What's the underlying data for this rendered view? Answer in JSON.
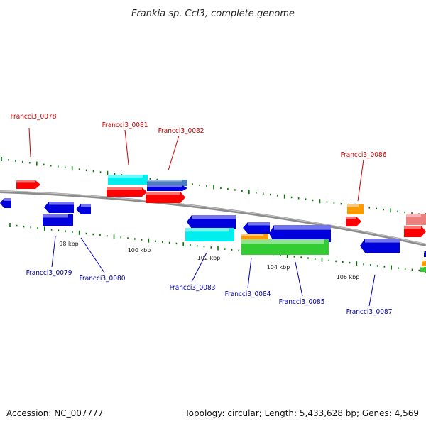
{
  "title": "Frankia sp. CcI3, complete genome",
  "footer": {
    "accession": "Accession: NC_007777",
    "summary": "Topology: circular; Length: 5,433,628 bp; Genes: 4,569"
  },
  "colors": {
    "forward_label": "#cc0000",
    "reverse_label": "#0000aa",
    "red": "#ff0000",
    "blue": "#0000dd",
    "cyan": "#00eeee",
    "orange": "#ff9900",
    "green": "#33cc33",
    "pink": "#ee7f7f",
    "steelblue": "#4d7fc0",
    "tick": "#007700",
    "backbone": "#888888"
  },
  "kbp_labels": [
    "98 kbp",
    "100 kbp",
    "102 kbp",
    "104 kbp",
    "106 kbp"
  ],
  "gene_labels": [
    {
      "text": "Francci3_0078",
      "strand": "forward"
    },
    {
      "text": "Francci3_0081",
      "strand": "forward"
    },
    {
      "text": "Francci3_0082",
      "strand": "forward"
    },
    {
      "text": "Francci3_0086",
      "strand": "forward"
    },
    {
      "text": "Francci3_0079",
      "strand": "reverse"
    },
    {
      "text": "Francci3_0080",
      "strand": "reverse"
    },
    {
      "text": "Francci3_0083",
      "strand": "reverse"
    },
    {
      "text": "Francci3_0084",
      "strand": "reverse"
    },
    {
      "text": "Francci3_0085",
      "strand": "reverse"
    },
    {
      "text": "Francci3_0087",
      "strand": "reverse"
    }
  ]
}
